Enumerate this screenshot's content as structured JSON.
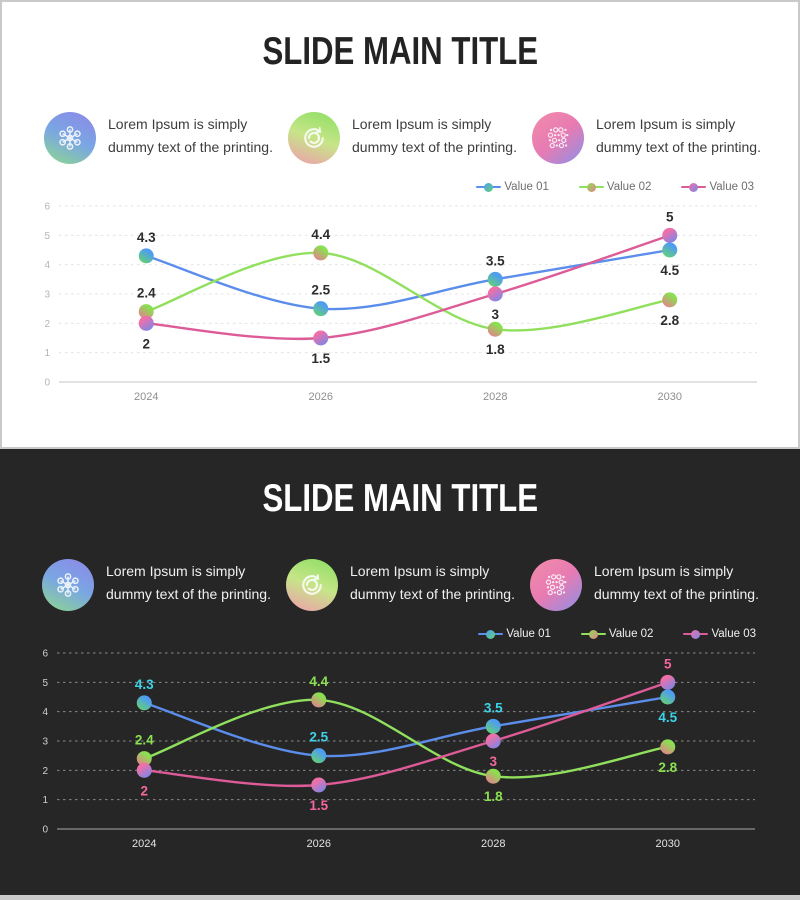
{
  "slide": {
    "title": "SLIDE MAIN TITLE",
    "features": [
      {
        "icon": "molecule-network-icon",
        "text": "Lorem Ipsum is simply dummy text of the printing."
      },
      {
        "icon": "sync-arrows-icon",
        "text": "Lorem Ipsum is simply dummy text of the printing."
      },
      {
        "icon": "dot-matrix-icon",
        "text": "Lorem Ipsum is simply dummy text of the printing."
      }
    ]
  },
  "chart_data": {
    "type": "line",
    "categories": [
      "2024",
      "2026",
      "2028",
      "2030"
    ],
    "series": [
      {
        "name": "Value 01",
        "values": [
          4.3,
          2.5,
          3.5,
          4.5
        ],
        "color": "#5b8deb",
        "dot_gradient": [
          "#4f9df0",
          "#63d175"
        ],
        "label_color_dark": "#3ed2e8",
        "label_side": [
          "above",
          "above",
          "above",
          "below"
        ]
      },
      {
        "name": "Value 02",
        "values": [
          2.4,
          4.4,
          1.8,
          2.8
        ],
        "color": "#90e05e",
        "dot_gradient": [
          "#8ae050",
          "#e2828c"
        ],
        "label_color_dark": "#8ae04f",
        "label_side": [
          "above",
          "above",
          "below",
          "below"
        ]
      },
      {
        "name": "Value 03",
        "values": [
          2,
          1.5,
          3,
          5
        ],
        "color": "#dd5b96",
        "dot_gradient": [
          "#f06fa8",
          "#7c87e8"
        ],
        "label_color_dark": "#f4679f",
        "label_side": [
          "below",
          "below",
          "below",
          "above"
        ]
      }
    ],
    "ylim": [
      0,
      6
    ],
    "yticks": [
      0,
      1,
      2,
      3,
      4,
      5,
      6
    ],
    "grid": "dashed-horizontal",
    "legend_position": "top-right",
    "label_color_light": "#2d2d2d"
  },
  "theme": {
    "light": {
      "bg": "#ffffff",
      "border": "#c9c9c9",
      "title": "#232323",
      "text": "#3d3d3d",
      "legend_text": "#6e6e6e",
      "grid": "#e3e3e3",
      "baseline": "#c6c6c6",
      "ytick": "#b4b4b4",
      "xtick": "#8e8e8e"
    },
    "dark": {
      "bg": "#262626",
      "title": "#ffffff",
      "text": "#f0f0f0",
      "legend_text": "#f0f0f0",
      "grid": "#8a8a8a",
      "baseline": "#a8a8a8",
      "ytick": "#cfcfcf",
      "xtick": "#e2e2e2"
    },
    "icon_gradients": [
      [
        "#8d87e8",
        "#7aa6e3",
        "#8ed98b"
      ],
      [
        "#8ade62",
        "#c6e588",
        "#f09cae"
      ],
      [
        "#f08cab",
        "#e87bb2",
        "#8b90e8"
      ]
    ]
  }
}
